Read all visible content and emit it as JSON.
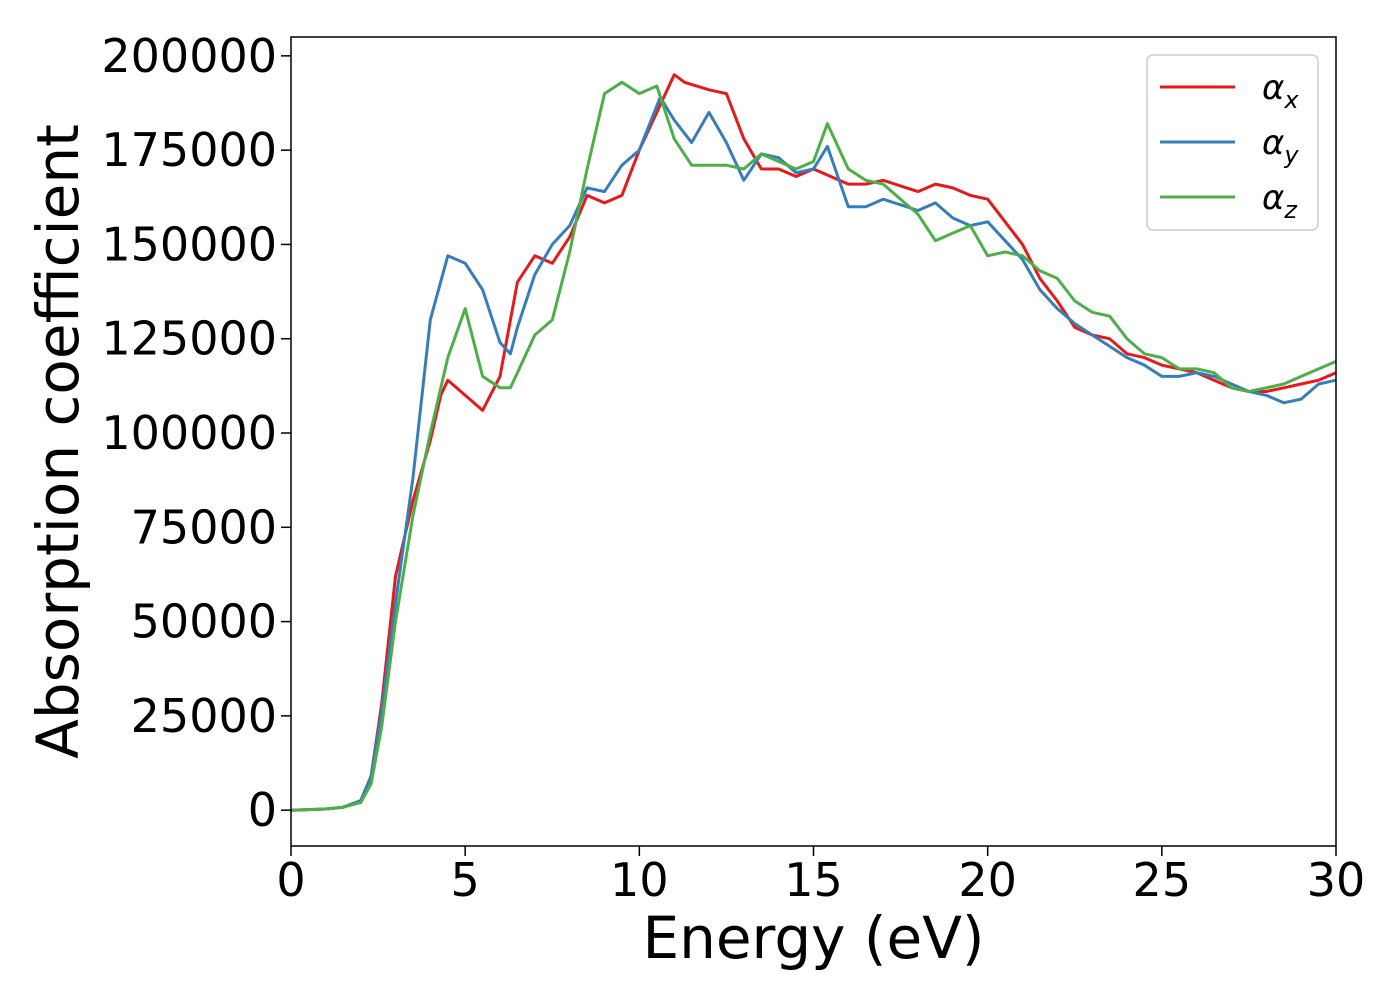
{
  "chart_data": {
    "type": "line",
    "xlabel": "Energy (eV)",
    "ylabel": "Absorption coefficient",
    "xlim": [
      0,
      30
    ],
    "ylim": [
      -9500,
      205000
    ],
    "xticks": [
      0,
      5,
      10,
      15,
      20,
      25,
      30
    ],
    "yticks": [
      0,
      25000,
      50000,
      75000,
      100000,
      125000,
      150000,
      175000,
      200000
    ],
    "grid": false,
    "legend_position": "top-right",
    "series": [
      {
        "name": "α",
        "subscript": "x",
        "color": "#e41a1c",
        "x": [
          0,
          1,
          1.5,
          2,
          2.3,
          2.6,
          3,
          3.5,
          4,
          4.3,
          4.5,
          5,
          5.5,
          6,
          6.5,
          7,
          7.5,
          8,
          8.5,
          9,
          9.5,
          10,
          10.5,
          11,
          11.3,
          12,
          12.5,
          13,
          13.5,
          14,
          14.5,
          15,
          16,
          16.5,
          17,
          18,
          18.5,
          19,
          19.5,
          20,
          21,
          21.5,
          22,
          22.5,
          23,
          23.5,
          24,
          24.5,
          25,
          25.5,
          26,
          26.5,
          27,
          27.5,
          28,
          28.5,
          29,
          29.5,
          30
        ],
        "y": [
          0,
          300,
          800,
          2500,
          9000,
          28000,
          62000,
          82000,
          98000,
          110000,
          114000,
          110000,
          106000,
          115000,
          140000,
          147000,
          145000,
          152000,
          163000,
          161000,
          163000,
          175000,
          185000,
          195000,
          193000,
          191000,
          190000,
          178000,
          170000,
          170000,
          168000,
          170000,
          166000,
          166000,
          167000,
          164000,
          166000,
          165000,
          163000,
          162000,
          150000,
          141000,
          135000,
          128000,
          126000,
          125000,
          121000,
          120000,
          118000,
          117000,
          116000,
          114000,
          112000,
          111000,
          111000,
          112000,
          113000,
          114000,
          116000
        ]
      },
      {
        "name": "α",
        "subscript": "y",
        "color": "#377eb8",
        "x": [
          0,
          1,
          1.5,
          2,
          2.3,
          2.6,
          3,
          3.5,
          4,
          4.5,
          5,
          5.5,
          6,
          6.3,
          6.5,
          7,
          7.5,
          8,
          8.5,
          9,
          9.5,
          10,
          10.6,
          11,
          11.5,
          12,
          12.5,
          13,
          13.5,
          14,
          14.5,
          15,
          15.4,
          16,
          16.5,
          17,
          18,
          18.5,
          19,
          19.5,
          20,
          20.5,
          21,
          21.5,
          22,
          22.5,
          23,
          23.5,
          24,
          24.5,
          25,
          25.5,
          26,
          26.5,
          27,
          27.5,
          28,
          28.5,
          29,
          29.5,
          30
        ],
        "y": [
          0,
          300,
          800,
          2500,
          9000,
          26000,
          55000,
          88000,
          130000,
          147000,
          145000,
          138000,
          124000,
          121000,
          128000,
          142000,
          150000,
          155000,
          165000,
          164000,
          171000,
          175000,
          189000,
          183000,
          177000,
          185000,
          177000,
          167000,
          174000,
          173000,
          169000,
          170000,
          176000,
          160000,
          160000,
          162000,
          159000,
          161000,
          157000,
          155000,
          156000,
          151000,
          146000,
          138000,
          133000,
          129000,
          126000,
          123000,
          120000,
          118000,
          115000,
          115000,
          116000,
          115000,
          113000,
          111000,
          110000,
          108000,
          109000,
          113000,
          114000
        ]
      },
      {
        "name": "α",
        "subscript": "z",
        "color": "#4daf4a",
        "x": [
          0,
          1,
          1.5,
          2,
          2.3,
          2.6,
          3,
          3.5,
          4,
          4.5,
          5,
          5.5,
          6,
          6.3,
          6.5,
          7,
          7.5,
          8,
          8.5,
          9,
          9.5,
          10,
          10.5,
          11,
          11.5,
          12,
          12.5,
          13,
          13.5,
          14,
          14.5,
          15,
          15.4,
          16,
          16.5,
          17,
          17.5,
          18,
          18.5,
          19,
          19.5,
          20,
          20.5,
          21,
          21.5,
          22,
          22.5,
          23,
          23.5,
          24,
          24.5,
          25,
          25.5,
          26,
          26.5,
          27,
          27.5,
          28,
          28.5,
          29,
          29.5,
          30
        ],
        "y": [
          0,
          300,
          800,
          2000,
          7000,
          22000,
          50000,
          78000,
          100000,
          120000,
          133000,
          115000,
          112000,
          112000,
          116000,
          126000,
          130000,
          148000,
          170000,
          190000,
          193000,
          190000,
          192000,
          178000,
          171000,
          171000,
          171000,
          170000,
          174000,
          172000,
          170000,
          172000,
          182000,
          170000,
          167000,
          166000,
          162000,
          158000,
          151000,
          153000,
          155000,
          147000,
          148000,
          147000,
          143000,
          141000,
          135000,
          132000,
          131000,
          125000,
          121000,
          120000,
          117000,
          117000,
          116000,
          112000,
          111000,
          112000,
          113000,
          115000,
          117000,
          119000
        ]
      }
    ]
  }
}
